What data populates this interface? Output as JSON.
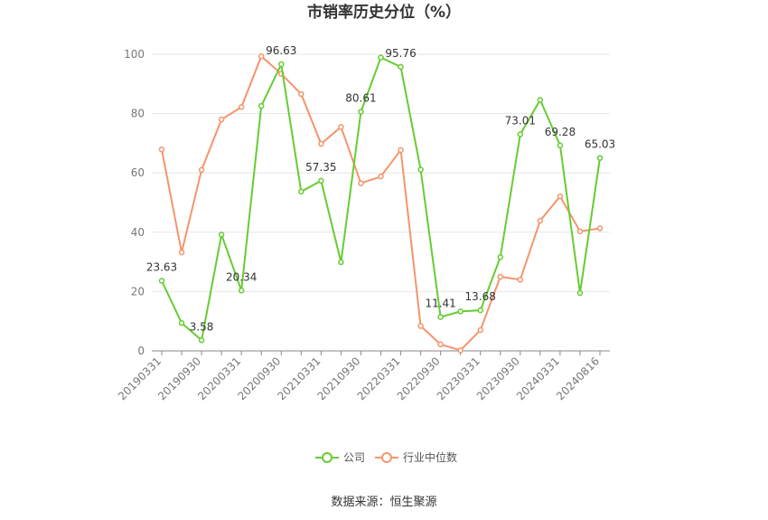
{
  "chart_data": {
    "type": "line",
    "title": "市销率历史分位（%）",
    "source": "数据来源：恒生聚源",
    "ylim": [
      0,
      100
    ],
    "yticks": [
      0,
      20,
      40,
      60,
      80,
      100
    ],
    "x": [
      "20190331",
      "20190630",
      "20190930",
      "20191231",
      "20200331",
      "20200630",
      "20200930",
      "20201231",
      "20210331",
      "20210630",
      "20210930",
      "20211231",
      "20220331",
      "20220630",
      "20220930",
      "20221231",
      "20230331",
      "20230630",
      "20230930",
      "20231231",
      "20240331",
      "20240630",
      "20240816"
    ],
    "xtick_labels": [
      "20190331",
      "20190930",
      "20200331",
      "20200930",
      "20210331",
      "20210930",
      "20220331",
      "20220930",
      "20230331",
      "20230930",
      "20240331",
      "20240816"
    ],
    "grid": true,
    "legend_position": "bottom",
    "series": [
      {
        "name": "公司",
        "color": "#66cc33",
        "values": [
          23.63,
          9.4,
          3.58,
          39.2,
          20.34,
          82.6,
          96.63,
          53.7,
          57.35,
          29.9,
          80.61,
          98.9,
          95.76,
          61.1,
          11.41,
          13.3,
          13.68,
          31.6,
          73.01,
          84.6,
          69.28,
          19.5,
          65.03
        ],
        "labels": {
          "0": "23.63",
          "2": "3.58",
          "4": "20.34",
          "6": "96.63",
          "8": "57.35",
          "10": "80.61",
          "12": "95.76",
          "14": "11.41",
          "16": "13.68",
          "18": "73.01",
          "20": "69.28",
          "22": "65.03"
        }
      },
      {
        "name": "行业中位数",
        "color": "#f4956b",
        "values": [
          67.9,
          33.2,
          61.0,
          78.0,
          82.2,
          99.3,
          93.4,
          86.6,
          69.8,
          75.5,
          56.5,
          58.8,
          67.7,
          8.4,
          2.2,
          0.2,
          7.0,
          25.0,
          24.0,
          43.9,
          52.1,
          40.3,
          41.3
        ]
      }
    ]
  }
}
